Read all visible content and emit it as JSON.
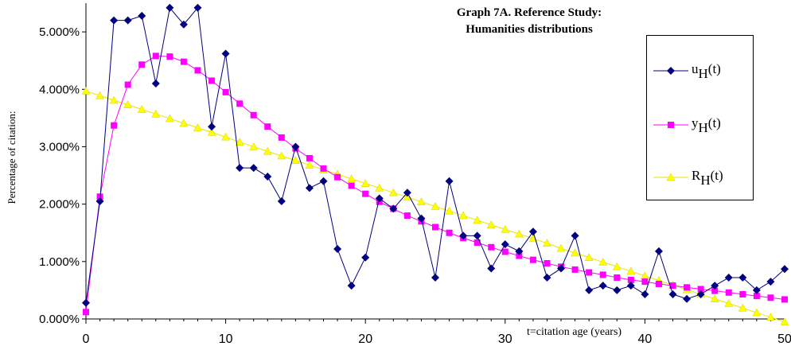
{
  "chart_data": {
    "type": "line",
    "title_line1": "Graph 7A.  Reference Study:",
    "title_line2": "Humanities distributions",
    "xlabel": "t=citation age (years)",
    "ylabel": "Percentage of citation:",
    "xlim": [
      0,
      50
    ],
    "ylim": [
      0,
      5.5
    ],
    "x_ticks": [
      0,
      10,
      20,
      30,
      40,
      50
    ],
    "y_ticks": [
      0,
      1,
      2,
      3,
      4,
      5
    ],
    "y_tick_labels": [
      "0.000%",
      "1.000%",
      "2.000%",
      "3.000%",
      "4.000%",
      "5.000%"
    ],
    "grid": false,
    "legend_position": "right",
    "series": [
      {
        "name": "u",
        "subscript": "H",
        "suffix": "(t)",
        "color": "#000080",
        "marker": "diamond",
        "x": [
          0,
          1,
          2,
          3,
          4,
          5,
          6,
          7,
          8,
          9,
          10,
          11,
          12,
          13,
          14,
          15,
          16,
          17,
          18,
          19,
          20,
          21,
          22,
          23,
          24,
          25,
          26,
          27,
          28,
          29,
          30,
          31,
          32,
          33,
          34,
          35,
          36,
          37,
          38,
          39,
          40,
          41,
          42,
          43,
          44,
          45,
          46,
          47,
          48,
          49,
          50
        ],
        "values": [
          0.28,
          2.05,
          5.2,
          5.2,
          5.28,
          4.1,
          5.42,
          5.13,
          5.42,
          3.35,
          4.62,
          2.63,
          2.63,
          2.48,
          2.05,
          3.0,
          2.28,
          2.4,
          1.22,
          0.58,
          1.07,
          2.1,
          1.92,
          2.2,
          1.75,
          0.72,
          2.4,
          1.45,
          1.45,
          0.88,
          1.3,
          1.18,
          1.52,
          0.72,
          0.88,
          1.45,
          0.5,
          0.58,
          0.5,
          0.58,
          0.43,
          1.18,
          0.43,
          0.35,
          0.43,
          0.58,
          0.72,
          0.72,
          0.5,
          0.65,
          0.87
        ]
      },
      {
        "name": "y",
        "subscript": "H",
        "suffix": "(t)",
        "color": "#ff00ff",
        "marker": "square",
        "x": [
          0,
          1,
          2,
          3,
          4,
          5,
          6,
          7,
          8,
          9,
          10,
          11,
          12,
          13,
          14,
          15,
          16,
          17,
          18,
          19,
          20,
          21,
          22,
          23,
          24,
          25,
          26,
          27,
          28,
          29,
          30,
          31,
          32,
          33,
          34,
          35,
          36,
          37,
          38,
          39,
          40,
          41,
          42,
          43,
          44,
          45,
          46,
          47,
          48,
          49,
          50
        ],
        "values": [
          0.12,
          2.13,
          3.37,
          4.08,
          4.43,
          4.58,
          4.57,
          4.48,
          4.33,
          4.15,
          3.95,
          3.75,
          3.55,
          3.35,
          3.16,
          2.97,
          2.8,
          2.62,
          2.47,
          2.32,
          2.18,
          2.04,
          1.92,
          1.8,
          1.7,
          1.6,
          1.5,
          1.41,
          1.33,
          1.25,
          1.17,
          1.1,
          1.03,
          0.97,
          0.91,
          0.86,
          0.81,
          0.77,
          0.72,
          0.68,
          0.65,
          0.61,
          0.58,
          0.55,
          0.52,
          0.49,
          0.46,
          0.43,
          0.4,
          0.37,
          0.34
        ]
      },
      {
        "name": "R",
        "subscript": "H",
        "suffix": "(t)",
        "color": "#ffff00",
        "marker": "triangle",
        "x": [
          0,
          1,
          2,
          3,
          4,
          5,
          6,
          7,
          8,
          9,
          10,
          11,
          12,
          13,
          14,
          15,
          16,
          17,
          18,
          19,
          20,
          21,
          22,
          23,
          24,
          25,
          26,
          27,
          28,
          29,
          30,
          31,
          32,
          33,
          34,
          35,
          36,
          37,
          38,
          39,
          40,
          41,
          42,
          43,
          44,
          45,
          46,
          47,
          48,
          49,
          50
        ],
        "values": [
          3.97,
          3.89,
          3.81,
          3.73,
          3.65,
          3.57,
          3.49,
          3.41,
          3.33,
          3.25,
          3.17,
          3.08,
          3.0,
          2.92,
          2.84,
          2.76,
          2.68,
          2.6,
          2.52,
          2.44,
          2.36,
          2.28,
          2.2,
          2.12,
          2.04,
          1.96,
          1.88,
          1.8,
          1.72,
          1.64,
          1.56,
          1.48,
          1.4,
          1.32,
          1.23,
          1.15,
          1.07,
          0.99,
          0.91,
          0.83,
          0.75,
          0.67,
          0.59,
          0.51,
          0.43,
          0.35,
          0.27,
          0.19,
          0.11,
          0.03,
          -0.05
        ]
      }
    ]
  }
}
